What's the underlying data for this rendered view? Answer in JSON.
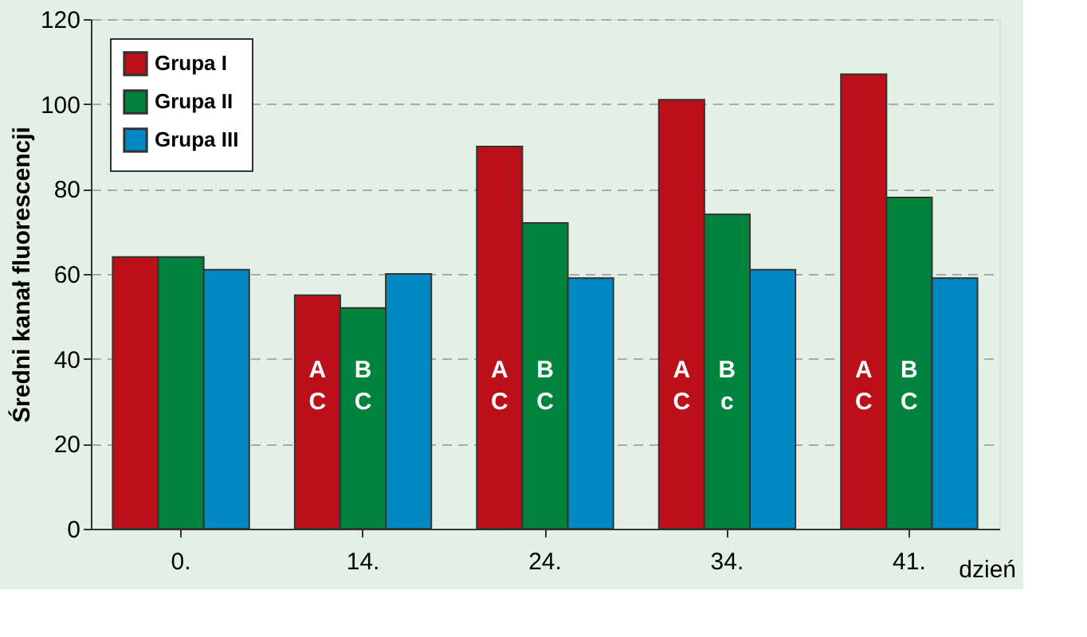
{
  "chart_data": {
    "type": "bar",
    "ylabel": "Średni kanał fluorescencji",
    "xlabel": "dzień",
    "categories": [
      "0.",
      "14.",
      "24.",
      "34.",
      "41."
    ],
    "series": [
      {
        "name": "Grupa I",
        "color": "#bb1019",
        "values": [
          64,
          55,
          90,
          101,
          107
        ],
        "value_labels": [
          null,
          "A C",
          "A C",
          "A C",
          "A C"
        ]
      },
      {
        "name": "Grupa II",
        "color": "#00843d",
        "values": [
          64,
          52,
          72,
          74,
          78
        ],
        "value_labels": [
          null,
          "B C",
          "B C",
          "B c",
          "B C"
        ]
      },
      {
        "name": "Grupa III",
        "color": "#0088c2",
        "values": [
          61,
          60,
          59,
          61,
          59
        ]
      }
    ],
    "ylim": [
      0,
      120
    ],
    "yticks": [
      0,
      20,
      40,
      60,
      80,
      100,
      120
    ],
    "grid": "y",
    "legend": "top left"
  }
}
